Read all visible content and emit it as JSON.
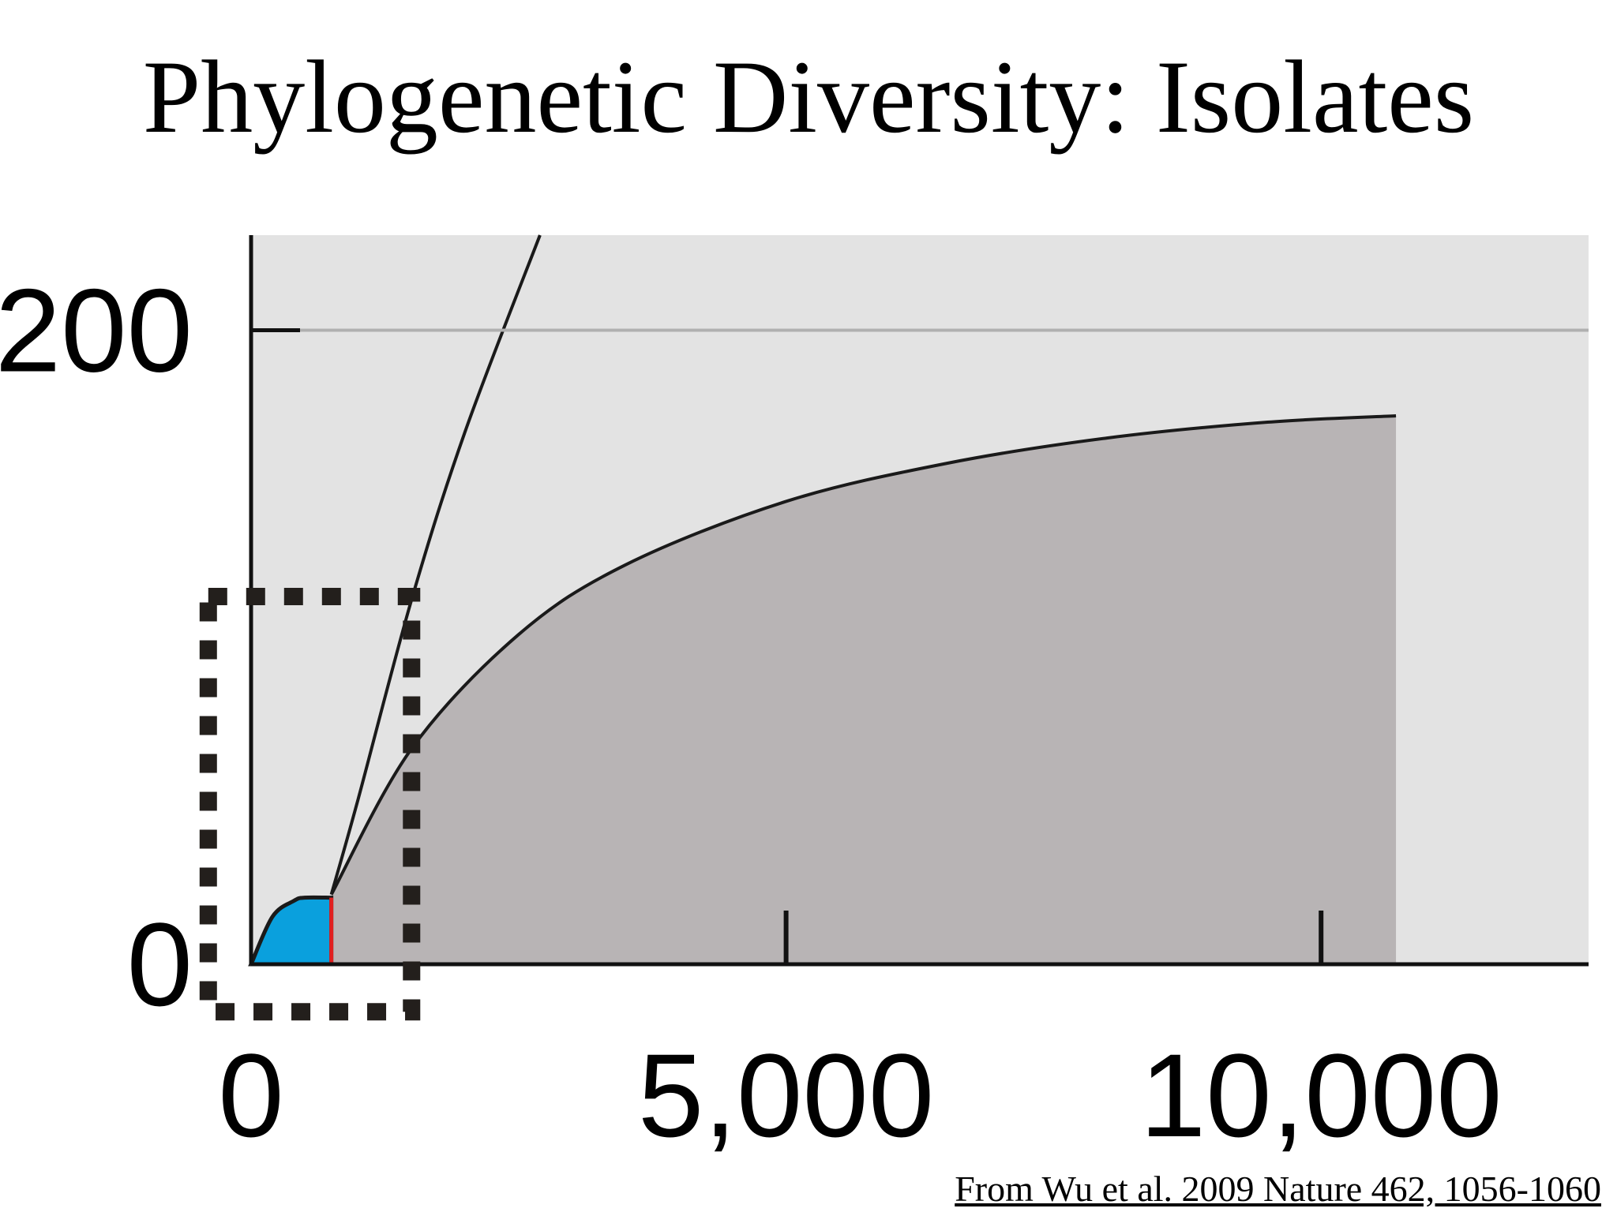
{
  "slide": {
    "title": "Phylogenetic Diversity: Isolates",
    "citation": "From Wu et al. 2009 Nature 462, 1056-1060"
  },
  "chart_data": {
    "type": "area",
    "title": "Phylogenetic Diversity: Isolates",
    "xlabel": "",
    "ylabel": "",
    "xlim": [
      0,
      12500
    ],
    "ylim": [
      0,
      230
    ],
    "x_ticks": [
      {
        "value": 0,
        "label": "0"
      },
      {
        "value": 5000,
        "label": "5,000"
      },
      {
        "value": 10000,
        "label": "10,000"
      }
    ],
    "y_ticks": [
      {
        "value": 0,
        "label": "0"
      },
      {
        "value": 200,
        "label": "200"
      }
    ],
    "reference_line_y": 200,
    "series": [
      {
        "color": "#1a1a1a",
        "x": [
          750,
          1000,
          1500,
          2000,
          2700
        ],
        "y": [
          22,
          52,
          115,
          168,
          230
        ]
      },
      {
        "color": "#b8b4b5",
        "x": [
          750,
          1500,
          2500,
          3500,
          5000,
          6500,
          8000,
          9500,
          10700
        ],
        "y": [
          22,
          68,
          104,
          126,
          146,
          158,
          166,
          171,
          173
        ]
      },
      {
        "color": "#0aa0dd",
        "x": [
          0,
          200,
          400,
          500,
          750
        ],
        "y": [
          0,
          15,
          20,
          21,
          21
        ]
      }
    ],
    "marker_line": {
      "x": 750,
      "color": "#e02020"
    },
    "zoom_box": {
      "x": [
        -400,
        1500
      ],
      "y": [
        -15,
        116
      ]
    },
    "colors": {
      "background_region": "#e3e3e3",
      "area_fill": "#b8b4b5",
      "initial_fill": "#0aa0dd"
    }
  }
}
